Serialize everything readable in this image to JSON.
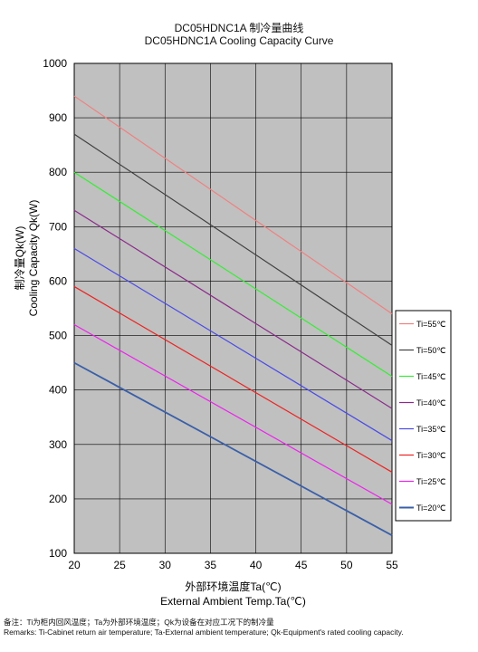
{
  "chart_data": {
    "type": "line",
    "title": "DC05HDNC1A  制冷量曲线",
    "subtitle": "DC05HDNC1A  Cooling Capacity Curve",
    "xlabel": "外部环境温度Ta(℃)",
    "xlabel_en": "External Ambient Temp.Ta(℃)",
    "ylabel": "制冷量Qk(W)",
    "ylabel_en": "Cooling Capacity Qk(W)",
    "xlim": [
      20,
      55
    ],
    "ylim": [
      100,
      1000
    ],
    "x_ticks": [
      20,
      25,
      30,
      35,
      40,
      45,
      50,
      55
    ],
    "y_ticks": [
      100,
      200,
      300,
      400,
      500,
      600,
      700,
      800,
      900,
      1000
    ],
    "grid": true,
    "plot_background": "#c0c0c0",
    "legend_position": "right",
    "x": [
      20,
      55
    ],
    "series": [
      {
        "name": "Ti=55℃",
        "values": [
          940,
          540
        ],
        "color": "#f08080"
      },
      {
        "name": "Ti=50℃",
        "values": [
          870,
          482
        ],
        "color": "#404040"
      },
      {
        "name": "Ti=45℃",
        "values": [
          800,
          425
        ],
        "color": "#33ee33"
      },
      {
        "name": "Ti=40℃",
        "values": [
          730,
          366
        ],
        "color": "#8b2a8b"
      },
      {
        "name": "Ti=35℃",
        "values": [
          660,
          307
        ],
        "color": "#4a4ae8"
      },
      {
        "name": "Ti=30℃",
        "values": [
          590,
          249
        ],
        "color": "#ee2222"
      },
      {
        "name": "Ti=25℃",
        "values": [
          520,
          190
        ],
        "color": "#ee22ee"
      },
      {
        "name": "Ti=20℃",
        "values": [
          450,
          133
        ],
        "color": "#3a5fa8"
      }
    ]
  },
  "remarks": {
    "cn": "备注：Ti为柜内回风温度；Ta为外部环境温度；Qk为设备在对应工况下的制冷量",
    "en": "Remarks: Ti-Cabinet return air temperature; Ta-External ambient temperature; Qk-Equipment's rated cooling capacity."
  }
}
